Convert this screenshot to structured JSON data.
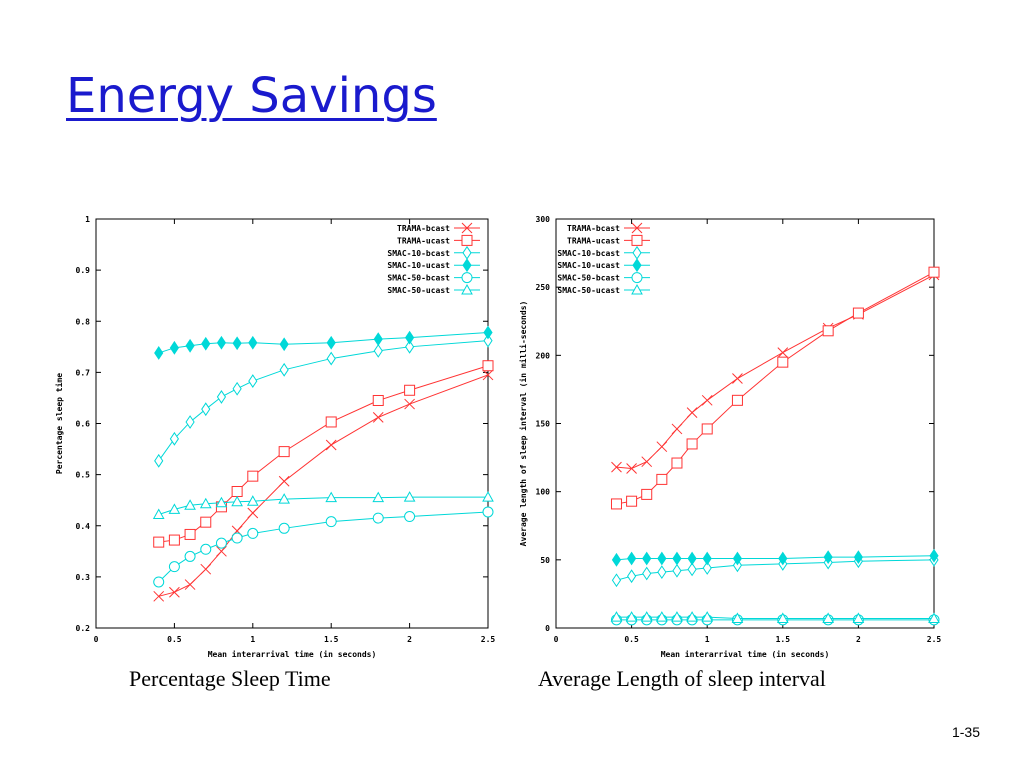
{
  "slide": {
    "title": "Energy Savings",
    "page_number": "1-35"
  },
  "captions": {
    "left": "Percentage Sleep Time",
    "right": "Average Length of sleep interval"
  },
  "colors": {
    "title": "#1a1acd",
    "trama": "#ff3333",
    "smac": "#00d8d8"
  },
  "chart_data": [
    {
      "type": "line",
      "xlabel": "Mean interarrival time (in seconds)",
      "ylabel": "Percentage sleep time",
      "xlim": [
        0,
        2.5
      ],
      "ylim": [
        0.2,
        1
      ],
      "x_ticks": [
        "0",
        "0.5",
        "1",
        "1.5",
        "2",
        "2.5"
      ],
      "y_ticks": [
        "0.2",
        "0.3",
        "0.4",
        "0.5",
        "0.6",
        "0.7",
        "0.8",
        "0.9",
        "1"
      ],
      "legend_position": "top-right",
      "grid": false,
      "series": [
        {
          "name": "TRAMA-bcast",
          "color": "#ff3333",
          "marker": "x",
          "x": [
            0.4,
            0.5,
            0.6,
            0.7,
            0.8,
            0.9,
            1.0,
            1.2,
            1.5,
            1.8,
            2.0,
            2.5
          ],
          "y": [
            0.262,
            0.27,
            0.285,
            0.315,
            0.35,
            0.39,
            0.425,
            0.487,
            0.558,
            0.612,
            0.638,
            0.695
          ]
        },
        {
          "name": "TRAMA-ucast",
          "color": "#ff3333",
          "marker": "square",
          "x": [
            0.4,
            0.5,
            0.6,
            0.7,
            0.8,
            0.9,
            1.0,
            1.2,
            1.5,
            1.8,
            2.0,
            2.5
          ],
          "y": [
            0.368,
            0.372,
            0.383,
            0.407,
            0.437,
            0.467,
            0.497,
            0.545,
            0.603,
            0.645,
            0.665,
            0.713
          ]
        },
        {
          "name": "SMAC-10-bcast",
          "color": "#00d8d8",
          "marker": "diamond",
          "x": [
            0.4,
            0.5,
            0.6,
            0.7,
            0.8,
            0.9,
            1.0,
            1.2,
            1.5,
            1.8,
            2.0,
            2.5
          ],
          "y": [
            0.527,
            0.57,
            0.603,
            0.628,
            0.652,
            0.668,
            0.683,
            0.705,
            0.727,
            0.742,
            0.75,
            0.762
          ]
        },
        {
          "name": "SMAC-10-ucast",
          "color": "#00d8d8",
          "marker": "diamond-filled",
          "x": [
            0.4,
            0.5,
            0.6,
            0.7,
            0.8,
            0.9,
            1.0,
            1.2,
            1.5,
            1.8,
            2.0,
            2.5
          ],
          "y": [
            0.738,
            0.748,
            0.752,
            0.756,
            0.758,
            0.757,
            0.758,
            0.755,
            0.758,
            0.765,
            0.768,
            0.778
          ]
        },
        {
          "name": "SMAC-50-bcast",
          "color": "#00d8d8",
          "marker": "circle",
          "x": [
            0.4,
            0.5,
            0.6,
            0.7,
            0.8,
            0.9,
            1.0,
            1.2,
            1.5,
            1.8,
            2.0,
            2.5
          ],
          "y": [
            0.29,
            0.32,
            0.34,
            0.354,
            0.366,
            0.376,
            0.385,
            0.395,
            0.408,
            0.415,
            0.418,
            0.427
          ]
        },
        {
          "name": "SMAC-50-ucast",
          "color": "#00d8d8",
          "marker": "triangle",
          "x": [
            0.4,
            0.5,
            0.6,
            0.7,
            0.8,
            0.9,
            1.0,
            1.2,
            1.5,
            1.8,
            2.0,
            2.5
          ],
          "y": [
            0.422,
            0.432,
            0.44,
            0.443,
            0.445,
            0.447,
            0.448,
            0.452,
            0.455,
            0.455,
            0.456,
            0.456
          ]
        }
      ]
    },
    {
      "type": "line",
      "xlabel": "Mean interarrival time (in seconds)",
      "ylabel": "Average length of sleep interval (in milli-seconds)",
      "xlim": [
        0,
        2.5
      ],
      "ylim": [
        0,
        300
      ],
      "x_ticks": [
        "0",
        "0.5",
        "1",
        "1.5",
        "2",
        "2.5"
      ],
      "y_ticks": [
        "0",
        "50",
        "100",
        "150",
        "200",
        "250",
        "300"
      ],
      "legend_position": "top-left",
      "grid": false,
      "series": [
        {
          "name": "TRAMA-bcast",
          "color": "#ff3333",
          "marker": "x",
          "x": [
            0.4,
            0.5,
            0.6,
            0.7,
            0.8,
            0.9,
            1.0,
            1.2,
            1.5,
            1.8,
            2.0,
            2.5
          ],
          "y": [
            118,
            117,
            122,
            133,
            146,
            158,
            167,
            183,
            202,
            220,
            230,
            259
          ]
        },
        {
          "name": "TRAMA-ucast",
          "color": "#ff3333",
          "marker": "square",
          "x": [
            0.4,
            0.5,
            0.6,
            0.7,
            0.8,
            0.9,
            1.0,
            1.2,
            1.5,
            1.8,
            2.0,
            2.5
          ],
          "y": [
            91,
            93,
            98,
            109,
            121,
            135,
            146,
            167,
            195,
            218,
            231,
            261
          ]
        },
        {
          "name": "SMAC-10-bcast",
          "color": "#00d8d8",
          "marker": "diamond",
          "x": [
            0.4,
            0.5,
            0.6,
            0.7,
            0.8,
            0.9,
            1.0,
            1.2,
            1.5,
            1.8,
            2.0,
            2.5
          ],
          "y": [
            35,
            38,
            40,
            41,
            42,
            43,
            44,
            46,
            47,
            48,
            49,
            50
          ]
        },
        {
          "name": "SMAC-10-ucast",
          "color": "#00d8d8",
          "marker": "diamond-filled",
          "x": [
            0.4,
            0.5,
            0.6,
            0.7,
            0.8,
            0.9,
            1.0,
            1.2,
            1.5,
            1.8,
            2.0,
            2.5
          ],
          "y": [
            50,
            51,
            51,
            51,
            51,
            51,
            51,
            51,
            51,
            52,
            52,
            53
          ]
        },
        {
          "name": "SMAC-50-bcast",
          "color": "#00d8d8",
          "marker": "circle",
          "x": [
            0.4,
            0.5,
            0.6,
            0.7,
            0.8,
            0.9,
            1.0,
            1.2,
            1.5,
            1.8,
            2.0,
            2.5
          ],
          "y": [
            6,
            6,
            6,
            6,
            6,
            6,
            6,
            6,
            6,
            6,
            6,
            6
          ]
        },
        {
          "name": "SMAC-50-ucast",
          "color": "#00d8d8",
          "marker": "triangle",
          "x": [
            0.4,
            0.5,
            0.6,
            0.7,
            0.8,
            0.9,
            1.0,
            1.2,
            1.5,
            1.8,
            2.0,
            2.5
          ],
          "y": [
            8,
            8,
            8,
            8,
            8,
            8,
            8,
            7,
            7,
            7,
            7,
            7
          ]
        }
      ]
    }
  ]
}
